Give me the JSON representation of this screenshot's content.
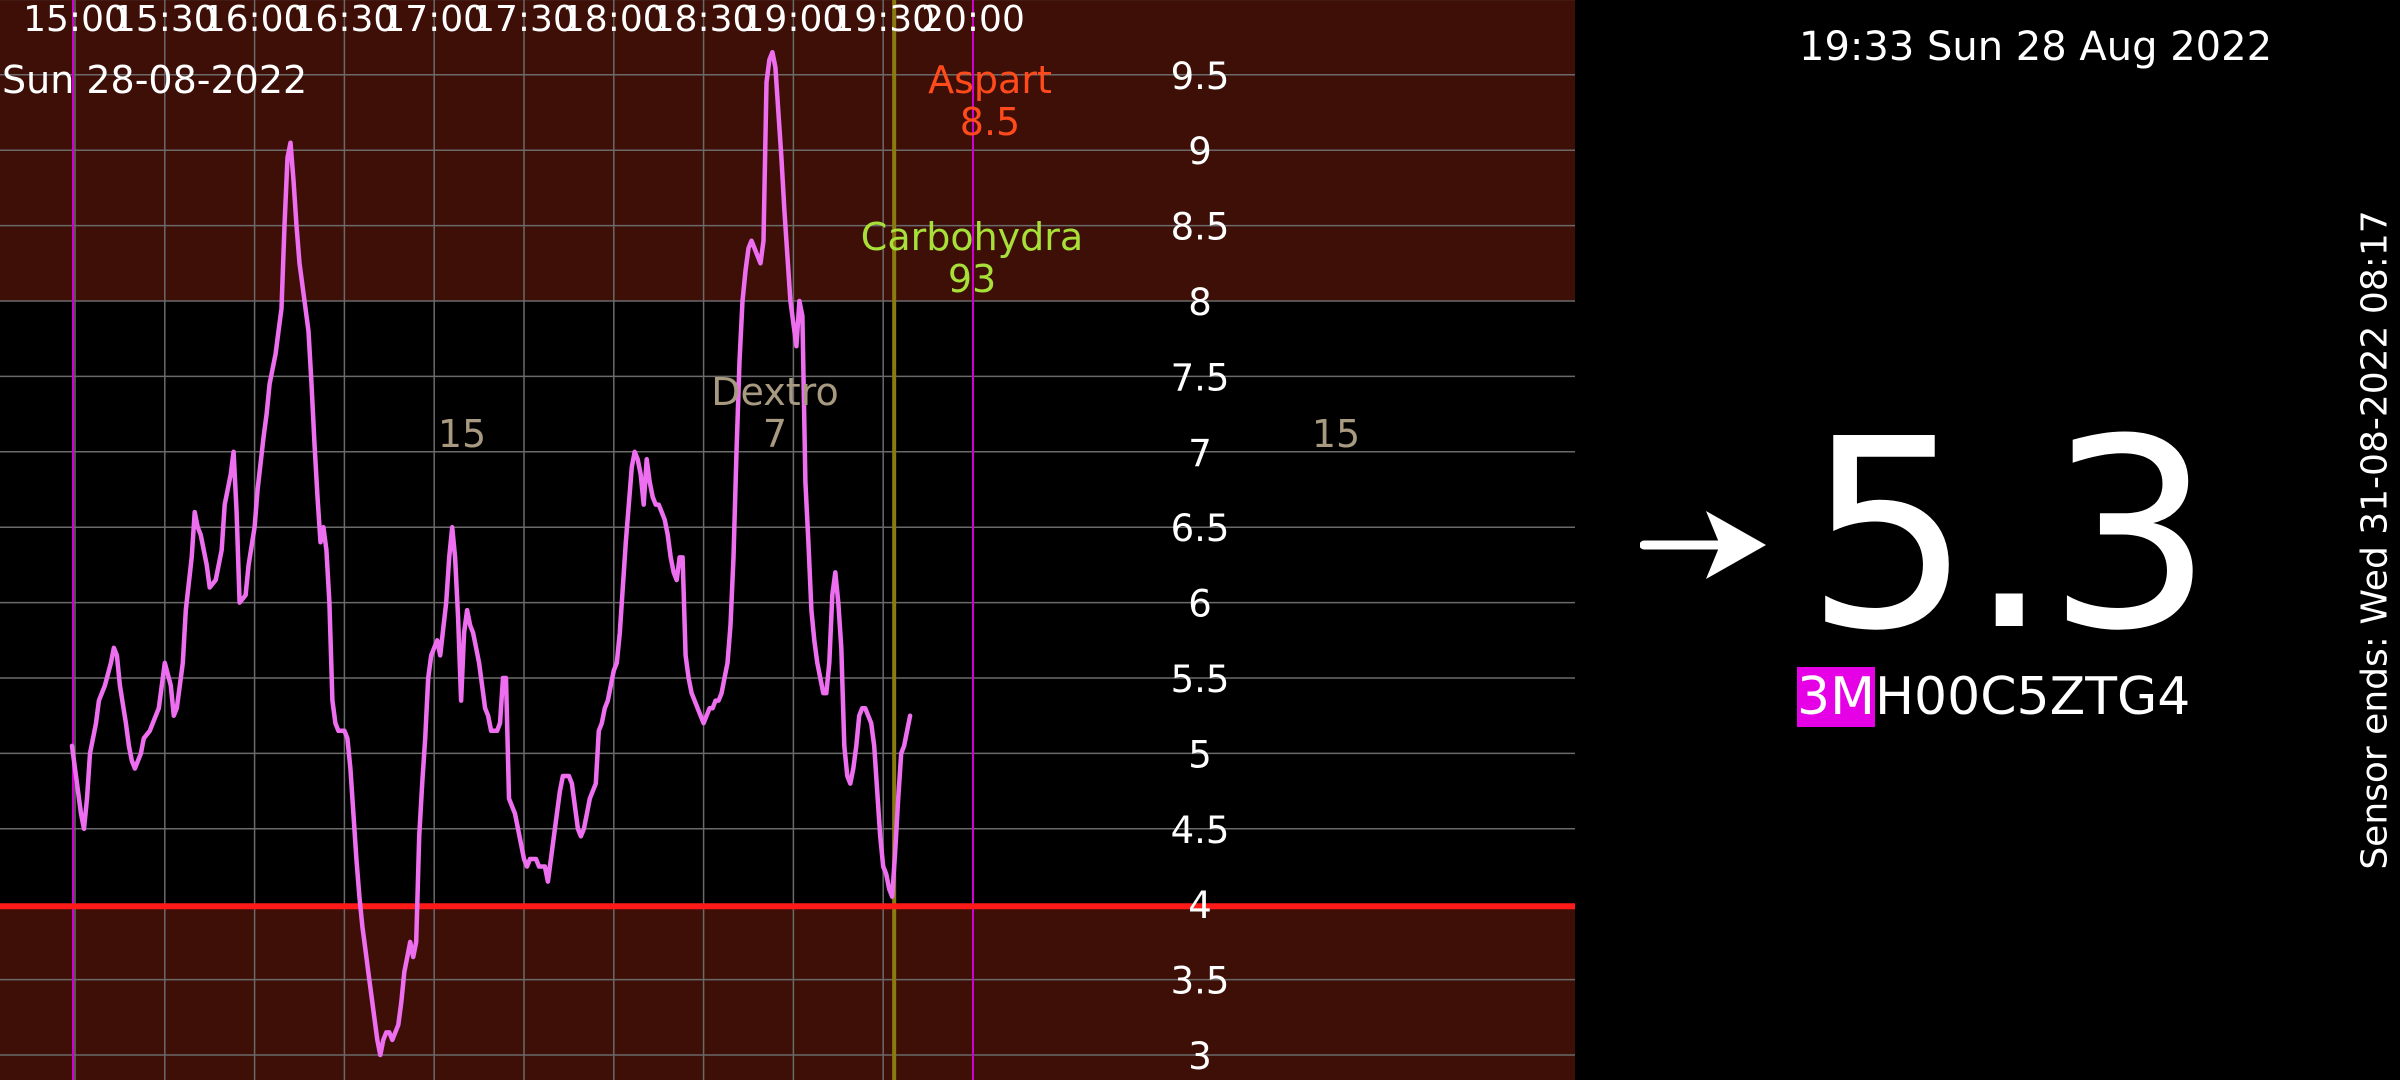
{
  "chart": {
    "date_label": "Sun 28-08-2022",
    "time_ticks": [
      "15:00",
      "15:30",
      "16:00",
      "16:30",
      "17:00",
      "17:30",
      "18:00",
      "18:30",
      "19:00",
      "19:30",
      "20:00"
    ],
    "y_ticks": [
      "9.5",
      "9",
      "8.5",
      "8",
      "7.5",
      "7",
      "6.5",
      "6",
      "5.5",
      "5",
      "4.5",
      "4",
      "3.5",
      "3"
    ],
    "annotations": [
      {
        "label": "Aspart",
        "value": "8.5",
        "color": "#ff4a1c"
      },
      {
        "label": "Carbohydra",
        "value": "93",
        "color": "#a8e03a"
      },
      {
        "label": "Dextro",
        "value": "7",
        "color": "#a89a80"
      },
      {
        "label": "",
        "value": "15",
        "color": "#a89a80"
      },
      {
        "label": "",
        "value": "15",
        "color": "#a89a80"
      }
    ],
    "colors": {
      "high_zone": "#3d0f07",
      "normal_zone": "#000000",
      "low_zone": "#3d0f07",
      "curve": "#ee6ef0",
      "low_line": "#ff1a1a",
      "event_line": "#d000d0",
      "now_line": "#8a7a10",
      "grid": "#6a6a6a"
    }
  },
  "chart_data": {
    "type": "line",
    "title": "",
    "xlabel": "",
    "ylabel": "",
    "x_range": [
      "15:00",
      "20:00"
    ],
    "ylim": [
      3,
      9.5
    ],
    "target_range": [
      4,
      8
    ],
    "low_threshold": 4,
    "series": [
      {
        "points": [
          [
            "14:59",
            5.05
          ],
          [
            "15:00",
            4.9
          ],
          [
            "15:02",
            4.6
          ],
          [
            "15:03",
            4.5
          ],
          [
            "15:04",
            4.7
          ],
          [
            "15:05",
            5.0
          ],
          [
            "15:07",
            5.2
          ],
          [
            "15:08",
            5.35
          ],
          [
            "15:10",
            5.45
          ],
          [
            "15:12",
            5.6
          ],
          [
            "15:13",
            5.7
          ],
          [
            "15:14",
            5.65
          ],
          [
            "15:15",
            5.45
          ],
          [
            "15:17",
            5.2
          ],
          [
            "15:18",
            5.05
          ],
          [
            "15:19",
            4.95
          ],
          [
            "15:20",
            4.9
          ],
          [
            "15:22",
            5.0
          ],
          [
            "15:23",
            5.1
          ],
          [
            "15:25",
            5.15
          ],
          [
            "15:26",
            5.2
          ],
          [
            "15:28",
            5.3
          ],
          [
            "15:29",
            5.45
          ],
          [
            "15:30",
            5.6
          ],
          [
            "15:32",
            5.45
          ],
          [
            "15:33",
            5.25
          ],
          [
            "15:34",
            5.3
          ],
          [
            "15:36",
            5.6
          ],
          [
            "15:37",
            5.95
          ],
          [
            "15:39",
            6.3
          ],
          [
            "15:40",
            6.6
          ],
          [
            "15:41",
            6.5
          ],
          [
            "15:42",
            6.45
          ],
          [
            "15:44",
            6.25
          ],
          [
            "15:45",
            6.1
          ],
          [
            "15:47",
            6.15
          ],
          [
            "15:48",
            6.25
          ],
          [
            "15:49",
            6.35
          ],
          [
            "15:50",
            6.65
          ],
          [
            "15:52",
            6.85
          ],
          [
            "15:53",
            7.0
          ],
          [
            "15:54",
            6.6
          ],
          [
            "15:55",
            6.0
          ],
          [
            "15:57",
            6.05
          ],
          [
            "15:58",
            6.25
          ],
          [
            "16:00",
            6.5
          ],
          [
            "16:01",
            6.75
          ],
          [
            "16:03",
            7.1
          ],
          [
            "16:04",
            7.25
          ],
          [
            "16:05",
            7.45
          ],
          [
            "16:07",
            7.65
          ],
          [
            "16:08",
            7.8
          ],
          [
            "16:09",
            7.95
          ],
          [
            "16:10",
            8.5
          ],
          [
            "16:11",
            8.95
          ],
          [
            "16:12",
            9.05
          ],
          [
            "16:13",
            8.8
          ],
          [
            "16:14",
            8.5
          ],
          [
            "16:15",
            8.25
          ],
          [
            "16:17",
            7.95
          ],
          [
            "16:18",
            7.8
          ],
          [
            "16:19",
            7.45
          ],
          [
            "16:20",
            7.05
          ],
          [
            "16:21",
            6.7
          ],
          [
            "16:22",
            6.4
          ],
          [
            "16:23",
            6.5
          ],
          [
            "16:24",
            6.35
          ],
          [
            "16:25",
            6.0
          ],
          [
            "16:26",
            5.35
          ],
          [
            "16:27",
            5.2
          ],
          [
            "16:28",
            5.15
          ],
          [
            "16:30",
            5.15
          ],
          [
            "16:31",
            5.1
          ],
          [
            "16:32",
            4.9
          ],
          [
            "16:33",
            4.6
          ],
          [
            "16:34",
            4.3
          ],
          [
            "16:35",
            4.05
          ],
          [
            "16:36",
            3.85
          ],
          [
            "16:37",
            3.7
          ],
          [
            "16:38",
            3.55
          ],
          [
            "16:39",
            3.4
          ],
          [
            "16:40",
            3.25
          ],
          [
            "16:41",
            3.1
          ],
          [
            "16:42",
            3.0
          ],
          [
            "16:43",
            3.1
          ],
          [
            "16:44",
            3.15
          ],
          [
            "16:45",
            3.15
          ],
          [
            "16:46",
            3.1
          ],
          [
            "16:47",
            3.15
          ],
          [
            "16:48",
            3.2
          ],
          [
            "16:49",
            3.35
          ],
          [
            "16:50",
            3.55
          ],
          [
            "16:51",
            3.65
          ],
          [
            "16:52",
            3.75
          ],
          [
            "16:53",
            3.65
          ],
          [
            "16:54",
            3.75
          ],
          [
            "16:55",
            4.45
          ],
          [
            "16:56",
            4.8
          ],
          [
            "16:57",
            5.1
          ],
          [
            "16:58",
            5.5
          ],
          [
            "16:59",
            5.65
          ],
          [
            "17:00",
            5.7
          ],
          [
            "17:01",
            5.75
          ],
          [
            "17:02",
            5.65
          ],
          [
            "17:04",
            6.0
          ],
          [
            "17:05",
            6.3
          ],
          [
            "17:06",
            6.5
          ],
          [
            "17:07",
            6.3
          ],
          [
            "17:08",
            5.9
          ],
          [
            "17:09",
            5.35
          ],
          [
            "17:10",
            5.8
          ],
          [
            "17:11",
            5.95
          ],
          [
            "17:12",
            5.85
          ],
          [
            "17:13",
            5.8
          ],
          [
            "17:14",
            5.7
          ],
          [
            "17:15",
            5.6
          ],
          [
            "17:16",
            5.45
          ],
          [
            "17:17",
            5.3
          ],
          [
            "17:18",
            5.25
          ],
          [
            "17:19",
            5.15
          ],
          [
            "17:21",
            5.15
          ],
          [
            "17:22",
            5.2
          ],
          [
            "17:23",
            5.5
          ],
          [
            "17:24",
            5.5
          ],
          [
            "17:25",
            4.7
          ],
          [
            "17:26",
            4.65
          ],
          [
            "17:27",
            4.6
          ],
          [
            "17:28",
            4.5
          ],
          [
            "17:29",
            4.4
          ],
          [
            "17:30",
            4.3
          ],
          [
            "17:31",
            4.25
          ],
          [
            "17:32",
            4.3
          ],
          [
            "17:34",
            4.3
          ],
          [
            "17:35",
            4.25
          ],
          [
            "17:37",
            4.25
          ],
          [
            "17:38",
            4.15
          ],
          [
            "17:39",
            4.3
          ],
          [
            "17:40",
            4.45
          ],
          [
            "17:41",
            4.6
          ],
          [
            "17:42",
            4.75
          ],
          [
            "17:43",
            4.85
          ],
          [
            "17:45",
            4.85
          ],
          [
            "17:46",
            4.8
          ],
          [
            "17:47",
            4.65
          ],
          [
            "17:48",
            4.5
          ],
          [
            "17:49",
            4.45
          ],
          [
            "17:50",
            4.5
          ],
          [
            "17:51",
            4.6
          ],
          [
            "17:52",
            4.7
          ],
          [
            "17:53",
            4.75
          ],
          [
            "17:54",
            4.8
          ],
          [
            "17:55",
            5.15
          ],
          [
            "17:56",
            5.2
          ],
          [
            "17:57",
            5.3
          ],
          [
            "17:58",
            5.35
          ],
          [
            "17:59",
            5.45
          ],
          [
            "18:00",
            5.55
          ],
          [
            "18:01",
            5.6
          ],
          [
            "18:02",
            5.8
          ],
          [
            "18:03",
            6.1
          ],
          [
            "18:04",
            6.4
          ],
          [
            "18:05",
            6.65
          ],
          [
            "18:06",
            6.9
          ],
          [
            "18:07",
            7.0
          ],
          [
            "18:08",
            6.95
          ],
          [
            "18:09",
            6.85
          ],
          [
            "18:10",
            6.65
          ],
          [
            "18:11",
            6.95
          ],
          [
            "18:12",
            6.8
          ],
          [
            "18:13",
            6.7
          ],
          [
            "18:14",
            6.65
          ],
          [
            "18:15",
            6.65
          ],
          [
            "18:16",
            6.6
          ],
          [
            "18:17",
            6.55
          ],
          [
            "18:18",
            6.45
          ],
          [
            "18:19",
            6.3
          ],
          [
            "18:20",
            6.2
          ],
          [
            "18:21",
            6.15
          ],
          [
            "18:22",
            6.3
          ],
          [
            "18:23",
            6.3
          ],
          [
            "18:24",
            5.65
          ],
          [
            "18:25",
            5.5
          ],
          [
            "18:26",
            5.4
          ],
          [
            "18:27",
            5.35
          ],
          [
            "18:28",
            5.3
          ],
          [
            "18:29",
            5.25
          ],
          [
            "18:30",
            5.2
          ],
          [
            "18:31",
            5.25
          ],
          [
            "18:32",
            5.3
          ],
          [
            "18:33",
            5.3
          ],
          [
            "18:34",
            5.35
          ],
          [
            "18:35",
            5.35
          ],
          [
            "18:36",
            5.4
          ],
          [
            "18:37",
            5.5
          ],
          [
            "18:38",
            5.6
          ],
          [
            "18:39",
            5.85
          ],
          [
            "18:40",
            6.3
          ],
          [
            "18:41",
            7.0
          ],
          [
            "18:42",
            7.6
          ],
          [
            "18:43",
            8.0
          ],
          [
            "18:44",
            8.2
          ],
          [
            "18:45",
            8.35
          ],
          [
            "18:46",
            8.4
          ],
          [
            "18:47",
            8.35
          ],
          [
            "18:48",
            8.3
          ],
          [
            "18:49",
            8.25
          ],
          [
            "18:50",
            8.4
          ],
          [
            "18:51",
            9.45
          ],
          [
            "18:52",
            9.6
          ],
          [
            "18:53",
            9.65
          ],
          [
            "18:54",
            9.55
          ],
          [
            "18:55",
            9.25
          ],
          [
            "18:56",
            8.95
          ],
          [
            "18:57",
            8.6
          ],
          [
            "18:58",
            8.3
          ],
          [
            "18:59",
            8.0
          ],
          [
            "19:00",
            7.85
          ],
          [
            "19:01",
            7.7
          ],
          [
            "19:02",
            8.0
          ],
          [
            "19:03",
            7.9
          ],
          [
            "19:04",
            6.8
          ],
          [
            "19:05",
            6.4
          ],
          [
            "19:06",
            5.95
          ],
          [
            "19:07",
            5.75
          ],
          [
            "19:08",
            5.6
          ],
          [
            "19:09",
            5.5
          ],
          [
            "19:10",
            5.4
          ],
          [
            "19:11",
            5.4
          ],
          [
            "19:12",
            5.6
          ],
          [
            "19:13",
            6.05
          ],
          [
            "19:14",
            6.2
          ],
          [
            "19:15",
            6.0
          ],
          [
            "19:16",
            5.7
          ],
          [
            "19:17",
            5.05
          ],
          [
            "19:18",
            4.85
          ],
          [
            "19:19",
            4.8
          ],
          [
            "19:20",
            4.9
          ],
          [
            "19:21",
            5.05
          ],
          [
            "19:22",
            5.25
          ],
          [
            "19:23",
            5.3
          ],
          [
            "19:24",
            5.3
          ],
          [
            "19:25",
            5.25
          ],
          [
            "19:26",
            5.2
          ],
          [
            "19:27",
            5.05
          ],
          [
            "19:28",
            4.75
          ],
          [
            "19:29",
            4.45
          ],
          [
            "19:30",
            4.25
          ],
          [
            "19:31",
            4.2
          ],
          [
            "19:32",
            4.1
          ],
          [
            "19:33",
            4.05
          ],
          [
            "19:34",
            4.35
          ],
          [
            "19:35",
            4.7
          ],
          [
            "19:36",
            5.0
          ],
          [
            "19:37",
            5.05
          ],
          [
            "19:38",
            5.15
          ],
          [
            "19:39",
            5.25
          ]
        ]
      }
    ]
  },
  "panel": {
    "datetime": "19:33 Sun 28 Aug 2022",
    "trend_icon": "arrow-right-icon",
    "glucose_value": "5.3",
    "sensor_id_prefix": "3M",
    "sensor_id_rest": "H00C5ZTG4",
    "sensor_ends": "Sensor ends: Wed 31-08-2022 08:17"
  }
}
